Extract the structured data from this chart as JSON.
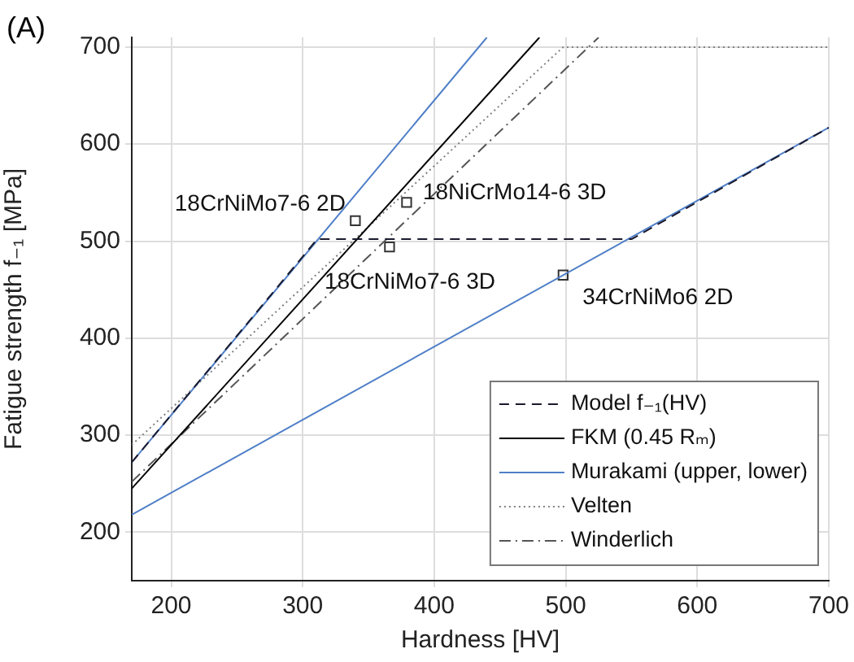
{
  "chart_data": {
    "type": "line",
    "title": "(A)",
    "xlabel": "Hardness [HV]",
    "ylabel": "Fatigue strength f₋₁ [MPa]",
    "xlim": [
      170,
      700
    ],
    "ylim": [
      150,
      710
    ],
    "xticks": [
      200,
      300,
      400,
      500,
      600,
      700
    ],
    "yticks": [
      200,
      300,
      400,
      500,
      600,
      700
    ],
    "grid": true,
    "legend": "bottom right",
    "series": [
      {
        "name": "Model f₋₁(HV)",
        "color": "#1a1a2e",
        "line_style": "dashed",
        "marker": "none",
        "x": [
          170,
          311,
          550,
          700
        ],
        "values": [
          272,
          502,
          502,
          617
        ]
      },
      {
        "name": "FKM (0.45 Rₘ)",
        "color": "#000000",
        "line_style": "solid",
        "marker": "none",
        "x": [
          170,
          480
        ],
        "values": [
          245,
          710
        ]
      },
      {
        "name": "Murakami (upper, lower)",
        "color": "#4f7fc7",
        "line_style": "solid",
        "marker": "none",
        "x": [
          170,
          440
        ],
        "values": [
          272,
          710
        ]
      },
      {
        "color": "#4f7fc7",
        "line_style": "solid",
        "marker": "none",
        "x": [
          170,
          700
        ],
        "values": [
          218,
          617
        ]
      },
      {
        "name": "Velten",
        "color": "#808080",
        "line_style": "dotted",
        "marker": "none",
        "x": [
          170,
          498,
          700
        ],
        "values": [
          290,
          700,
          700
        ]
      },
      {
        "name": "Winderlich",
        "color": "#555555",
        "line_style": "dashdot",
        "marker": "none",
        "x": [
          170,
          525
        ],
        "values": [
          252,
          710
        ]
      },
      {
        "type": "scatter",
        "color": "#333333",
        "marker": "square",
        "x": [
          340,
          379,
          366,
          498
        ],
        "values": [
          521,
          540,
          494,
          465
        ]
      }
    ],
    "annotations": [
      {
        "text": "18CrNiMo7-6 2D",
        "x": 340,
        "y": 521
      },
      {
        "text": "18NiCrMo14-6 3D",
        "x": 379,
        "y": 540
      },
      {
        "text": "18CrNiMo7-6 3D",
        "x": 366,
        "y": 494
      },
      {
        "text": "34CrNiMo6 2D",
        "x": 498,
        "y": 465
      }
    ]
  }
}
